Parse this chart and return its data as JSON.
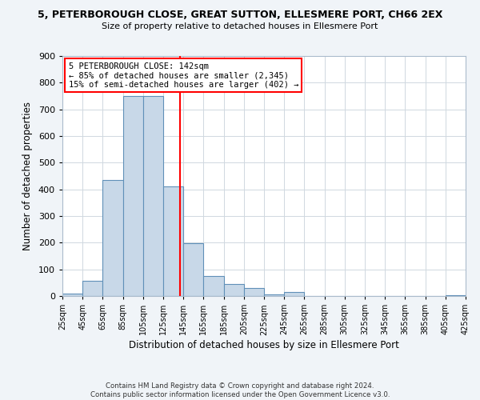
{
  "title": "5, PETERBOROUGH CLOSE, GREAT SUTTON, ELLESMERE PORT, CH66 2EX",
  "subtitle": "Size of property relative to detached houses in Ellesmere Port",
  "xlabel": "Distribution of detached houses by size in Ellesmere Port",
  "ylabel": "Number of detached properties",
  "bin_edges": [
    25,
    45,
    65,
    85,
    105,
    125,
    145,
    165,
    185,
    205,
    225,
    245,
    265,
    285,
    305,
    325,
    345,
    365,
    385,
    405,
    425
  ],
  "bin_heights": [
    10,
    57,
    435,
    750,
    750,
    410,
    197,
    75,
    45,
    30,
    5,
    15,
    0,
    0,
    0,
    0,
    0,
    0,
    0,
    3
  ],
  "bar_color": "#c8d8e8",
  "bar_edge_color": "#6090b8",
  "vline_x": 142,
  "vline_color": "red",
  "annotation_line1": "5 PETERBOROUGH CLOSE: 142sqm",
  "annotation_line2": "← 85% of detached houses are smaller (2,345)",
  "annotation_line3": "15% of semi-detached houses are larger (402) →",
  "annotation_box_color": "white",
  "annotation_box_edge_color": "red",
  "ylim": [
    0,
    900
  ],
  "xlim": [
    25,
    425
  ],
  "yticks": [
    0,
    100,
    200,
    300,
    400,
    500,
    600,
    700,
    800,
    900
  ],
  "xtick_labels": [
    "25sqm",
    "45sqm",
    "65sqm",
    "85sqm",
    "105sqm",
    "125sqm",
    "145sqm",
    "165sqm",
    "185sqm",
    "205sqm",
    "225sqm",
    "245sqm",
    "265sqm",
    "285sqm",
    "305sqm",
    "325sqm",
    "345sqm",
    "365sqm",
    "385sqm",
    "405sqm",
    "425sqm"
  ],
  "xtick_positions": [
    25,
    45,
    65,
    85,
    105,
    125,
    145,
    165,
    185,
    205,
    225,
    245,
    265,
    285,
    305,
    325,
    345,
    365,
    385,
    405,
    425
  ],
  "footer_text": "Contains HM Land Registry data © Crown copyright and database right 2024.\nContains public sector information licensed under the Open Government Licence v3.0.",
  "background_color": "#f0f4f8",
  "plot_bg_color": "#ffffff",
  "grid_color": "#d0d8e0"
}
